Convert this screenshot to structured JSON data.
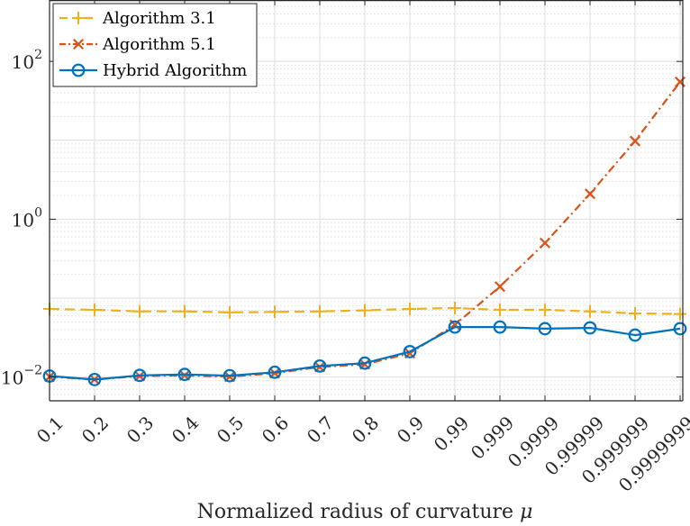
{
  "chart_data": {
    "type": "line",
    "title": "",
    "xlabel": "Normalized radius of curvature",
    "xlabel_symbol": "μ",
    "ylabel": "",
    "yscale": "log",
    "ylim": [
      0.005,
      600
    ],
    "y_ticks": [
      {
        "value": 0.01,
        "base": "10",
        "exp": "−2"
      },
      {
        "value": 1,
        "base": "10",
        "exp": "0"
      },
      {
        "value": 100,
        "base": "10",
        "exp": "2"
      }
    ],
    "categories": [
      "0.1",
      "0.2",
      "0.3",
      "0.4",
      "0.5",
      "0.6",
      "0.7",
      "0.8",
      "0.9",
      "0.99",
      "0.999",
      "0.9999",
      "0.99999",
      "0.999999",
      "0.9999999"
    ],
    "grid": true,
    "legend_position": "top-left",
    "series": [
      {
        "name": "Algorithm 3.1",
        "color": "#EDB120",
        "marker": "plus",
        "line_style": "dashed",
        "values": [
          0.073,
          0.071,
          0.068,
          0.068,
          0.066,
          0.067,
          0.068,
          0.07,
          0.073,
          0.075,
          0.071,
          0.071,
          0.068,
          0.064,
          0.063
        ]
      },
      {
        "name": "Algorithm 5.1",
        "color": "#D95319",
        "marker": "x",
        "line_style": "dashdot",
        "values": [
          0.0101,
          0.0093,
          0.0103,
          0.0105,
          0.0101,
          0.0112,
          0.0134,
          0.0145,
          0.02,
          0.046,
          0.14,
          0.5,
          2.1,
          9.8,
          55.0
        ]
      },
      {
        "name": "Hybrid Algorithm",
        "color": "#0072BD",
        "marker": "circle",
        "line_style": "solid",
        "values": [
          0.0103,
          0.0093,
          0.0105,
          0.0108,
          0.0104,
          0.0115,
          0.0138,
          0.015,
          0.021,
          0.043,
          0.043,
          0.041,
          0.042,
          0.034,
          0.041
        ]
      }
    ]
  }
}
